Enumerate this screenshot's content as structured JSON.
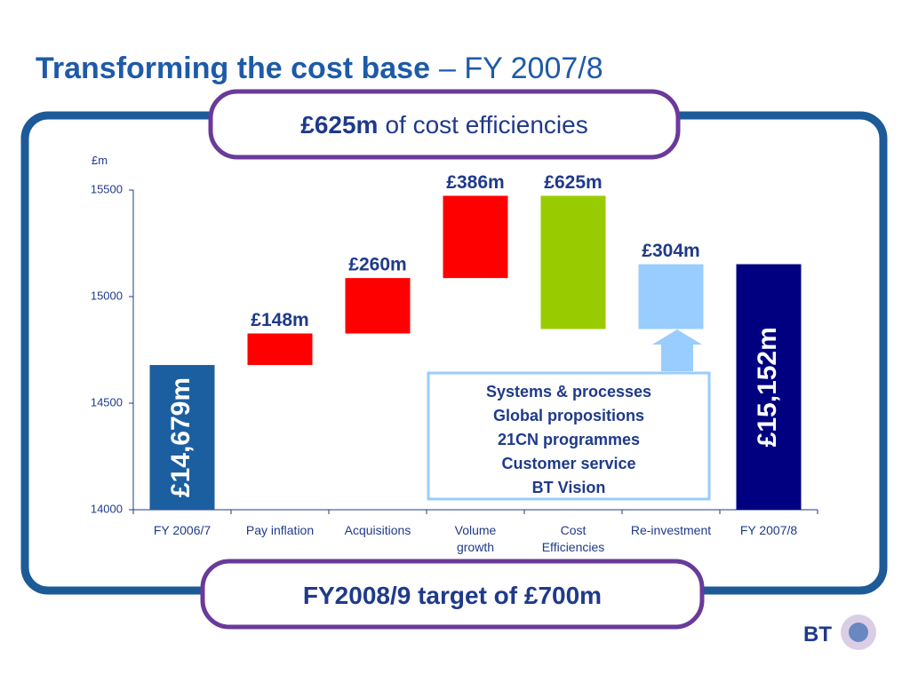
{
  "slide": {
    "title_bold": "Transforming the cost base",
    "title_rest": "– FY 2007/8",
    "top_banner_bold": "£625m",
    "top_banner_rest": "of cost efficiencies",
    "bottom_banner": "FY2008/9 target of £700m",
    "box_lines": [
      "Systems & processes",
      "Global propositions",
      "21CN programmes",
      "Customer service",
      "BT Vision"
    ],
    "logo": "BT"
  },
  "chart_data": {
    "type": "waterfall",
    "y_unit": "£m",
    "categories": [
      "FY 2006/7",
      "Pay inflation",
      "Acquisitions",
      "Volume\ngrowth",
      "Cost\nEfficiencies",
      "Re-investment",
      "FY 2007/8"
    ],
    "values": [
      14679,
      148,
      260,
      386,
      -625,
      304,
      15152
    ],
    "value_labels": [
      "£14,679m",
      "£148m",
      "£260m",
      "£386m",
      "£625m",
      "£304m",
      "£15,152m"
    ],
    "measure": [
      "absolute",
      "relative",
      "relative",
      "relative",
      "relative",
      "relative",
      "absolute"
    ],
    "colors": [
      "#1c5fa0",
      "#ff0000",
      "#ff0000",
      "#ff0000",
      "#99cc00",
      "#99ccff",
      "#000080"
    ],
    "ylim": [
      14000,
      15500
    ],
    "yticks": [
      14000,
      14500,
      15000,
      15500
    ]
  }
}
